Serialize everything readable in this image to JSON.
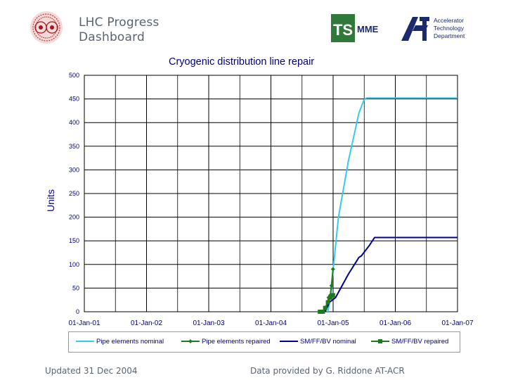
{
  "header": {
    "title_line1": "LHC Progress",
    "title_line2": "Dashboard",
    "ts_logo_text": "TS",
    "ts_logo_suffix": "MME",
    "at_logo_text": "AT",
    "department_line1": "Accelerator",
    "department_line2": "Technology",
    "department_line3": "Department",
    "icons": [
      "lhc-logo-icon",
      "ts-logo-icon",
      "at-logo-icon"
    ]
  },
  "footer": {
    "updated": "Updated 31 Dec 2004",
    "provided": "Data provided by G. Riddone AT-ACR"
  },
  "chart_data": {
    "type": "line",
    "title": "Cryogenic distribution line repair",
    "xlabel": "",
    "ylabel": "Units",
    "x_ticks": [
      "01-Jan-01",
      "01-Jan-02",
      "01-Jan-03",
      "01-Jan-04",
      "01-Jan-05",
      "01-Jan-06",
      "01-Jan-07"
    ],
    "y_ticks": [
      "0",
      "50",
      "100",
      "150",
      "200",
      "250",
      "300",
      "350",
      "400",
      "450",
      "500"
    ],
    "ylim": [
      0,
      500
    ],
    "xlim": [
      "2001-01-01",
      "2007-01-01"
    ],
    "grid": true,
    "legend_position": "bottom",
    "series": [
      {
        "name": "Pipe elements nominal",
        "color": "#33ccee",
        "marker": "none",
        "points": [
          [
            "2004-12-01",
            0
          ],
          [
            "2004-12-20",
            40
          ],
          [
            "2005-01-01",
            90
          ],
          [
            "2005-02-01",
            200
          ],
          [
            "2005-04-01",
            320
          ],
          [
            "2005-06-01",
            420
          ],
          [
            "2005-07-01",
            448
          ],
          [
            "2005-07-15",
            452
          ],
          [
            "2007-01-01",
            452
          ]
        ]
      },
      {
        "name": "Pipe elements repaired",
        "color": "#1f7a1f",
        "marker": "diamond",
        "points": [
          [
            "2004-10-15",
            0
          ],
          [
            "2004-11-01",
            0
          ],
          [
            "2004-11-15",
            5
          ],
          [
            "2004-11-25",
            12
          ],
          [
            "2004-12-05",
            30
          ],
          [
            "2004-12-15",
            35
          ],
          [
            "2004-12-22",
            55
          ],
          [
            "2004-12-31",
            90
          ]
        ]
      },
      {
        "name": "SM/FF/BV nominal",
        "color": "#000099",
        "marker": "none",
        "points": [
          [
            "2004-11-15",
            0
          ],
          [
            "2004-12-10",
            20
          ],
          [
            "2005-01-15",
            30
          ],
          [
            "2005-04-01",
            80
          ],
          [
            "2005-05-15",
            105
          ],
          [
            "2005-06-01",
            115
          ],
          [
            "2005-06-15",
            118
          ],
          [
            "2005-08-01",
            140
          ],
          [
            "2005-09-01",
            157
          ],
          [
            "2007-01-01",
            157
          ]
        ]
      },
      {
        "name": "SM/FF/BV repaired",
        "color": "#1f7a1f",
        "marker": "square",
        "points": [
          [
            "2004-10-15",
            0
          ],
          [
            "2004-11-01",
            0
          ],
          [
            "2004-11-15",
            8
          ],
          [
            "2004-12-01",
            20
          ],
          [
            "2004-12-15",
            30
          ],
          [
            "2004-12-31",
            35
          ]
        ]
      }
    ]
  }
}
